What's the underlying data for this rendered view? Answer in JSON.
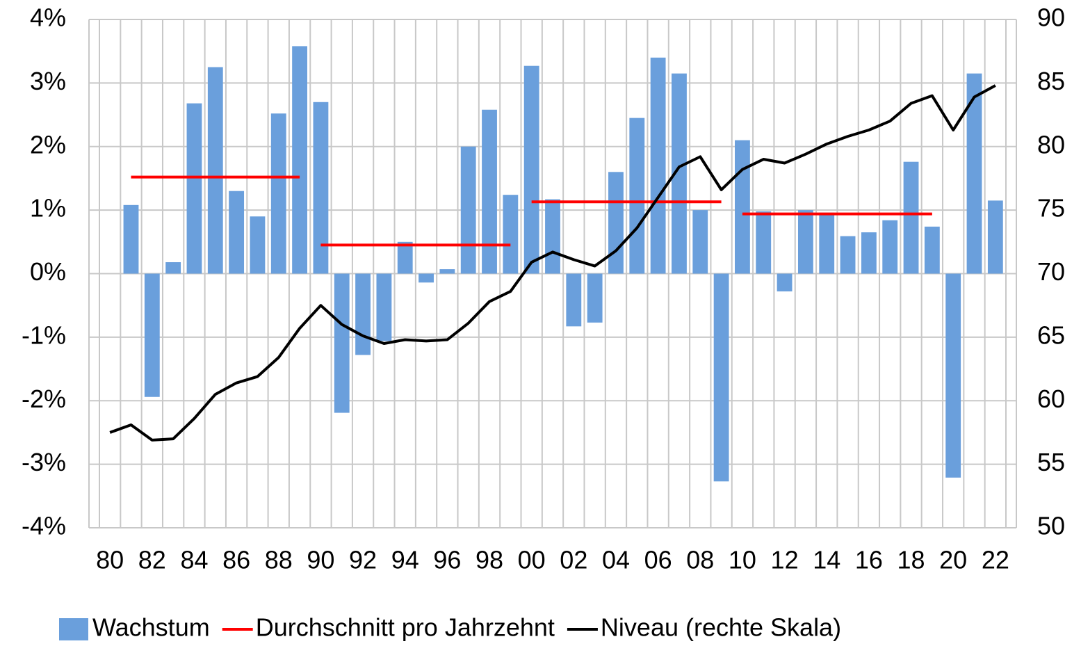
{
  "chart_data": {
    "type": "bar",
    "categories": [
      "80",
      null,
      "82",
      null,
      "84",
      null,
      "86",
      null,
      "88",
      null,
      "90",
      null,
      "92",
      null,
      "94",
      null,
      "96",
      null,
      "98",
      null,
      "00",
      null,
      "02",
      null,
      "04",
      null,
      "06",
      null,
      "08",
      null,
      "10",
      null,
      "12",
      null,
      "14",
      null,
      "16",
      null,
      "18",
      null,
      "20",
      null,
      "22"
    ],
    "series": [
      {
        "name": "Wachstum",
        "type": "bar",
        "color": "#6a9fdc",
        "values": [
          null,
          1.08,
          -1.94,
          0.18,
          2.68,
          3.25,
          1.3,
          0.9,
          2.52,
          3.58,
          2.7,
          -2.19,
          -1.28,
          -1.06,
          0.5,
          -0.14,
          0.07,
          2.0,
          2.58,
          1.24,
          3.27,
          1.17,
          -0.83,
          -0.77,
          1.6,
          2.45,
          3.4,
          3.15,
          1.0,
          -3.27,
          2.1,
          0.98,
          -0.28,
          1.0,
          0.96,
          0.59,
          0.65,
          0.84,
          1.76,
          0.74,
          -3.21,
          3.15,
          1.15
        ]
      },
      {
        "name": "Durchschnitt pro Jahrzehnt",
        "type": "step",
        "color": "#ff0000",
        "values": [
          null,
          1.52,
          1.52,
          1.52,
          1.52,
          1.52,
          1.52,
          1.52,
          1.52,
          1.52,
          0.45,
          0.45,
          0.45,
          0.45,
          0.45,
          0.45,
          0.45,
          0.45,
          0.45,
          0.45,
          1.13,
          1.13,
          1.13,
          1.13,
          1.13,
          1.13,
          1.13,
          1.13,
          1.13,
          1.13,
          0.94,
          0.94,
          0.94,
          0.94,
          0.94,
          0.94,
          0.94,
          0.94,
          0.94,
          0.94,
          null,
          null,
          null
        ]
      },
      {
        "name": "Niveau (rechte Skala)",
        "type": "line",
        "axis": "y2",
        "color": "#000000",
        "values": [
          57.5,
          58.1,
          56.9,
          57.0,
          58.6,
          60.5,
          61.4,
          61.9,
          63.4,
          65.7,
          67.5,
          66.0,
          65.1,
          64.5,
          64.8,
          64.7,
          64.8,
          66.1,
          67.8,
          68.6,
          70.9,
          71.7,
          71.1,
          70.6,
          71.8,
          73.6,
          76.0,
          78.4,
          79.2,
          76.6,
          78.2,
          79.0,
          78.7,
          79.4,
          80.2,
          80.8,
          81.3,
          82.0,
          83.4,
          84.0,
          81.3,
          83.9,
          84.8
        ]
      }
    ],
    "ylim": [
      -4,
      4
    ],
    "yticks": [
      {
        "value": -4,
        "label": "-4%"
      },
      {
        "value": -3,
        "label": "-3%"
      },
      {
        "value": -2,
        "label": "-2%"
      },
      {
        "value": -1,
        "label": "-1%"
      },
      {
        "value": 0,
        "label": "0%"
      },
      {
        "value": 1,
        "label": "1%"
      },
      {
        "value": 2,
        "label": "2%"
      },
      {
        "value": 3,
        "label": "3%"
      },
      {
        "value": 4,
        "label": "4%"
      }
    ],
    "y2lim": [
      50,
      90
    ],
    "y2ticks": [
      50,
      55,
      60,
      65,
      70,
      75,
      80,
      85,
      90
    ],
    "grid": true,
    "legend": "bottom"
  }
}
